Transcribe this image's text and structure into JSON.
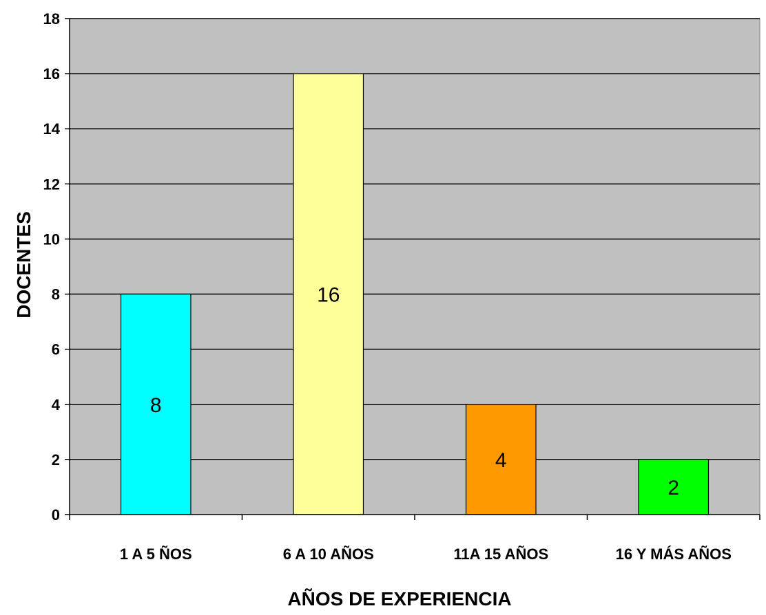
{
  "chart_data": {
    "type": "bar",
    "categories": [
      "1 A 5 ÑOS",
      "6 A 10 AÑOS",
      "11A 15 AÑOS",
      "16 Y MÁS AÑOS"
    ],
    "values": [
      8,
      16,
      4,
      2
    ],
    "bar_colors": [
      "#00ffff",
      "#ffff99",
      "#ff9900",
      "#00ff00"
    ],
    "data_labels": [
      "8",
      "16",
      "4",
      "2"
    ],
    "xlabel": "AÑOS DE EXPERIENCIA",
    "ylabel": "DOCENTES",
    "ylim": [
      0,
      18
    ],
    "yticks": [
      0,
      2,
      4,
      6,
      8,
      10,
      12,
      14,
      16,
      18
    ],
    "grid": true,
    "plot_background": "#c0c0c0",
    "legend": "none"
  }
}
